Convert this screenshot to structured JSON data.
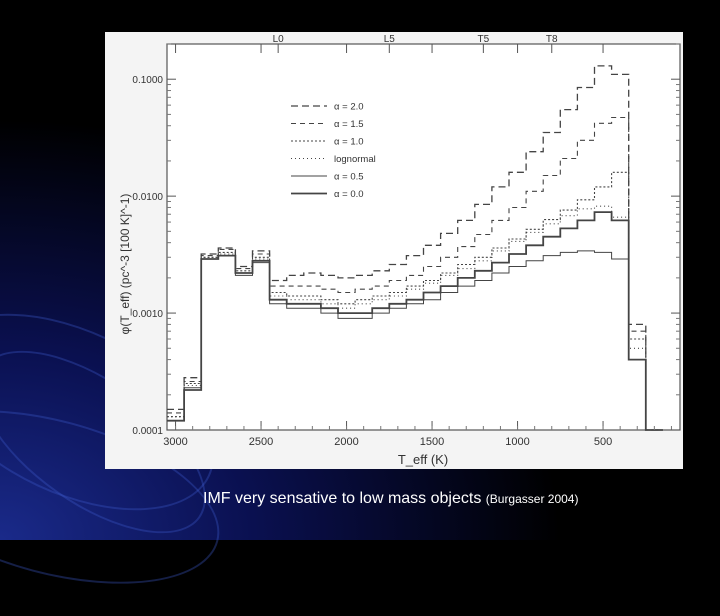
{
  "caption": {
    "main": "IMF very sensative to low mass objects",
    "citation": "(Burgasser 2004)"
  },
  "chart_data": {
    "type": "line",
    "step": true,
    "title": "",
    "xlabel": "T_eff (K)",
    "ylabel": "φ(T_eff) (pc^-3 [100 K]^-1)",
    "xlim": [
      3050,
      50
    ],
    "ylim": [
      0.0001,
      0.2
    ],
    "yscale": "log",
    "x_ticks": [
      3000,
      2500,
      2000,
      1500,
      1000,
      500
    ],
    "y_ticks": [
      0.0001,
      0.001,
      0.01,
      0.1
    ],
    "y_tick_labels": [
      "0.0001",
      "0.0010",
      "0.0100",
      "0.1000"
    ],
    "top_axis": [
      {
        "label": "L0",
        "x": 2400
      },
      {
        "label": "L5",
        "x": 1750
      },
      {
        "label": "T5",
        "x": 1200
      },
      {
        "label": "T8",
        "x": 800
      }
    ],
    "legend_position": "upper-left",
    "x": [
      3000,
      2900,
      2800,
      2700,
      2600,
      2500,
      2400,
      2300,
      2200,
      2100,
      2000,
      1900,
      1800,
      1700,
      1600,
      1500,
      1400,
      1300,
      1200,
      1100,
      1000,
      900,
      800,
      700,
      600,
      500,
      400,
      300,
      200
    ],
    "series": [
      {
        "name": "α = 2.0",
        "dash": "7,4",
        "width": 1.3,
        "values": [
          0.00015,
          0.00028,
          0.0032,
          0.0036,
          0.0025,
          0.0034,
          0.0019,
          0.0021,
          0.0022,
          0.0021,
          0.002,
          0.0021,
          0.0023,
          0.0026,
          0.0031,
          0.0038,
          0.0048,
          0.0062,
          0.0085,
          0.012,
          0.016,
          0.024,
          0.035,
          0.055,
          0.085,
          0.13,
          0.11,
          0.0008,
          0.0001
        ]
      },
      {
        "name": "α = 1.5",
        "dash": "5,4",
        "width": 1.1,
        "values": [
          0.00014,
          0.00026,
          0.0031,
          0.0035,
          0.0024,
          0.0032,
          0.0017,
          0.0017,
          0.0017,
          0.0016,
          0.0015,
          0.0016,
          0.0017,
          0.0019,
          0.0021,
          0.0025,
          0.003,
          0.0037,
          0.0047,
          0.0062,
          0.008,
          0.011,
          0.015,
          0.021,
          0.03,
          0.042,
          0.047,
          0.0007,
          0.0001
        ]
      },
      {
        "name": "α = 1.0",
        "dash": "2,2",
        "width": 1.1,
        "values": [
          0.00013,
          0.00025,
          0.003,
          0.0033,
          0.0023,
          0.003,
          0.0015,
          0.0014,
          0.0014,
          0.0013,
          0.0012,
          0.0013,
          0.0014,
          0.0015,
          0.0017,
          0.0019,
          0.0022,
          0.0026,
          0.003,
          0.0036,
          0.0043,
          0.0052,
          0.0063,
          0.0076,
          0.0093,
          0.012,
          0.016,
          0.0006,
          0.0001
        ]
      },
      {
        "name": "lognormal",
        "dash": "1,3",
        "width": 1.1,
        "values": [
          0.00013,
          0.00024,
          0.003,
          0.0032,
          0.0022,
          0.0029,
          0.0014,
          0.0013,
          0.0013,
          0.0012,
          0.0011,
          0.0012,
          0.0013,
          0.0014,
          0.0016,
          0.0018,
          0.0021,
          0.0024,
          0.0028,
          0.0034,
          0.0041,
          0.0049,
          0.0058,
          0.0068,
          0.0078,
          0.0082,
          0.0066,
          0.0005,
          0.0001
        ]
      },
      {
        "name": "α = 0.5",
        "dash": "",
        "width": 1.0,
        "values": [
          0.00012,
          0.00023,
          0.0029,
          0.0031,
          0.0021,
          0.0027,
          0.0012,
          0.0011,
          0.0011,
          0.001,
          0.0009,
          0.0009,
          0.001,
          0.0011,
          0.0012,
          0.0013,
          0.0015,
          0.0017,
          0.0019,
          0.0022,
          0.0025,
          0.0028,
          0.0031,
          0.0033,
          0.0034,
          0.0033,
          0.0029,
          0.0004,
          0.0001
        ]
      },
      {
        "name": "α = 0.0",
        "dash": "",
        "width": 1.8,
        "values": [
          0.00012,
          0.00022,
          0.0029,
          0.0031,
          0.0022,
          0.0028,
          0.0013,
          0.0012,
          0.0012,
          0.0011,
          0.001,
          0.001,
          0.0011,
          0.0012,
          0.0013,
          0.0015,
          0.0017,
          0.002,
          0.0023,
          0.0027,
          0.0032,
          0.0038,
          0.0045,
          0.0053,
          0.0062,
          0.0073,
          0.0062,
          0.0004,
          0.0001
        ]
      }
    ]
  }
}
